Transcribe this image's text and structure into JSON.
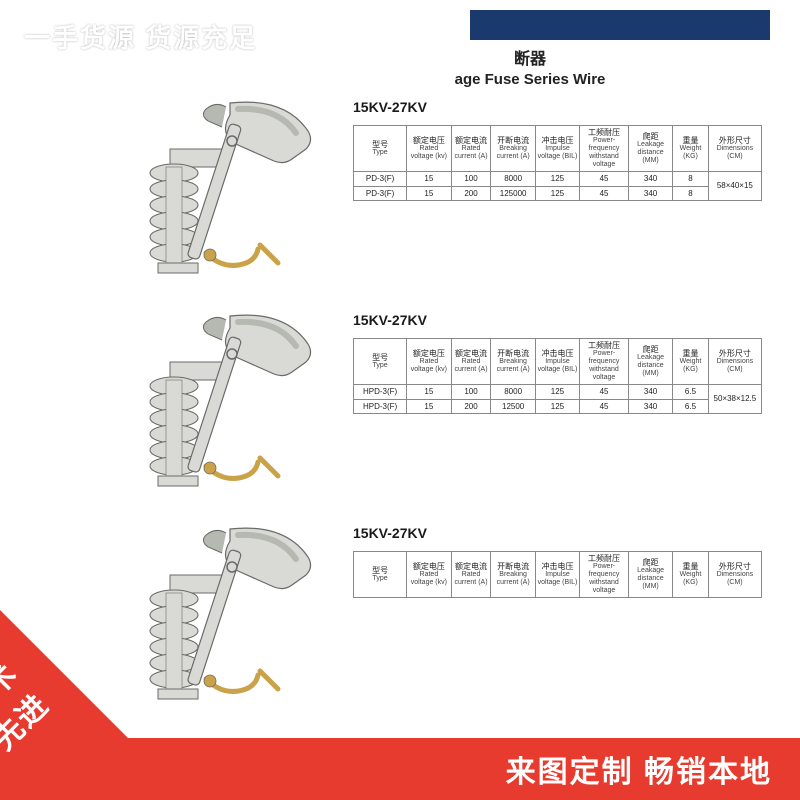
{
  "overlay": {
    "top_banner": "一手货源 货源充足",
    "badge_left": "技术\n先进",
    "bottom_right": "来图定制 畅销本地",
    "accent_color": "#e63b2e",
    "text_color": "#ffffff"
  },
  "document": {
    "title_cn": "断器",
    "title_en": "age Fuse Series Wire",
    "header_bar_color": "#1a3a6e",
    "columns": [
      {
        "cn": "型号",
        "en": "Type"
      },
      {
        "cn": "额定电压",
        "en": "Rated voltage (kv)"
      },
      {
        "cn": "额定电流",
        "en": "Rated current (A)"
      },
      {
        "cn": "开断电流",
        "en": "Breaking current (A)"
      },
      {
        "cn": "冲击电压",
        "en": "Impulse voltage (BIL)"
      },
      {
        "cn": "工频耐压",
        "en": "Power-frequency withstand voltage"
      },
      {
        "cn": "爬距",
        "en": "Leakage distance (MM)"
      },
      {
        "cn": "重量",
        "en": "Weight (KG)"
      },
      {
        "cn": "外形尺寸",
        "en": "Dimensions (CM)"
      }
    ],
    "sections": [
      {
        "heading": "15KV-27KV",
        "dimensions_merged": "58×40×15",
        "rows": [
          [
            "PD-3(F)",
            "15",
            "100",
            "8000",
            "125",
            "45",
            "340",
            "8"
          ],
          [
            "PD-3(F)",
            "15",
            "200",
            "125000",
            "125",
            "45",
            "340",
            "8"
          ]
        ]
      },
      {
        "heading": "15KV-27KV",
        "dimensions_merged": "50×38×12.5",
        "rows": [
          [
            "HPD-3(F)",
            "15",
            "100",
            "8000",
            "125",
            "45",
            "340",
            "6.5"
          ],
          [
            "HPD-3(F)",
            "15",
            "200",
            "12500",
            "125",
            "45",
            "340",
            "6.5"
          ]
        ]
      },
      {
        "heading": "15KV-27KV",
        "dimensions_merged": "",
        "rows": []
      }
    ]
  },
  "drawing": {
    "body_color": "#d9dad6",
    "shade_color": "#b6b8b2",
    "metal_color": "#c9a24a",
    "outline_color": "#6a6b66"
  }
}
